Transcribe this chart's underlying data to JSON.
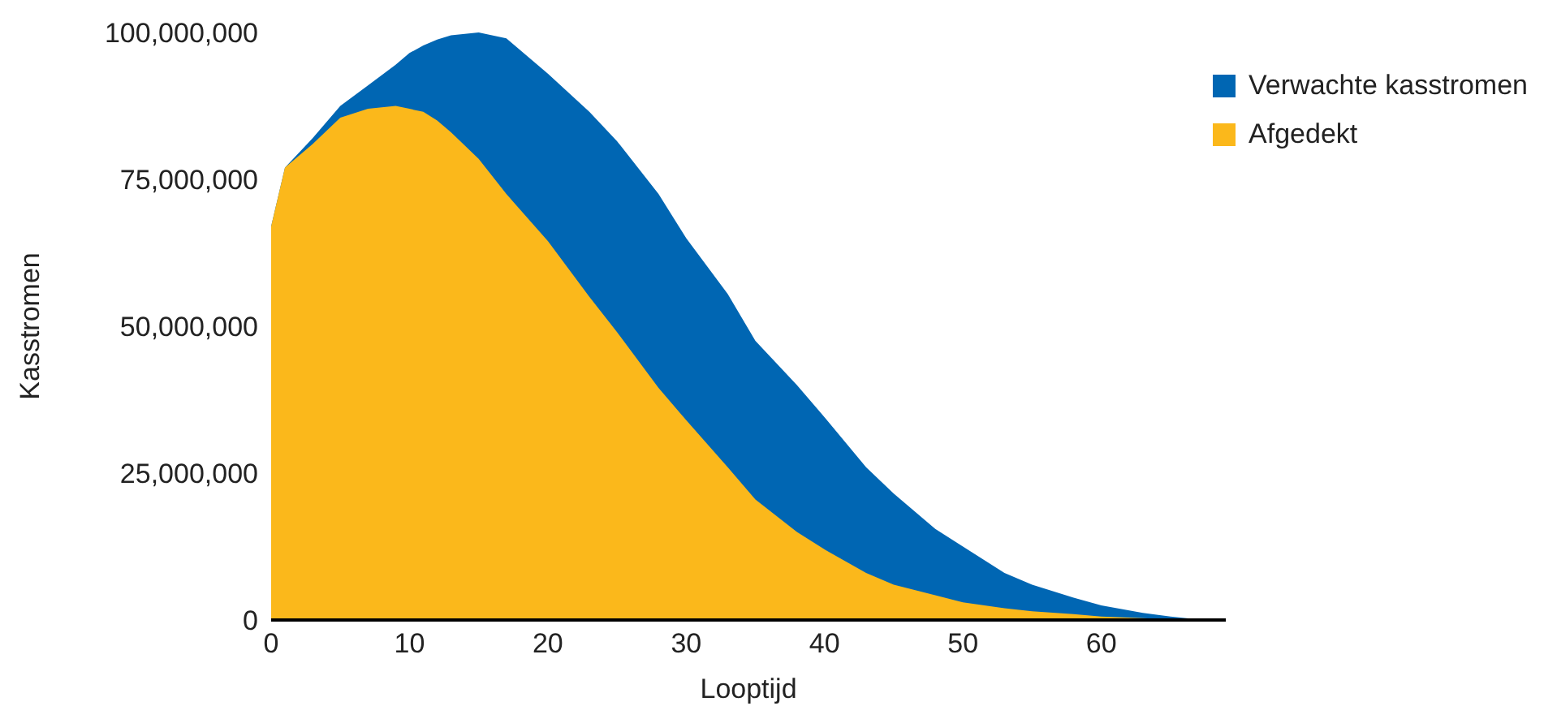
{
  "chart_data": {
    "type": "area",
    "xlabel": "Looptijd",
    "ylabel": "Kasstromen",
    "x": [
      0,
      1,
      3,
      5,
      7,
      9,
      10,
      11,
      12,
      13,
      15,
      17,
      20,
      23,
      25,
      28,
      30,
      33,
      35,
      38,
      40,
      43,
      45,
      48,
      50,
      53,
      55,
      58,
      60,
      63,
      65,
      67,
      69
    ],
    "series": [
      {
        "name": "Verwachte kasstromen",
        "color": "#0066b3",
        "values": [
          67000000,
          77000000,
          82000000,
          87500000,
          91000000,
          94500000,
          96500000,
          97800000,
          98800000,
          99500000,
          100000000,
          99000000,
          93000000,
          86500000,
          81500000,
          72500000,
          65000000,
          55500000,
          47500000,
          40000000,
          34500000,
          26000000,
          21500000,
          15500000,
          12500000,
          8000000,
          6000000,
          3800000,
          2500000,
          1200000,
          600000,
          100000,
          0
        ]
      },
      {
        "name": "Afgedekt",
        "color": "#fbb81b",
        "values": [
          67000000,
          77000000,
          81000000,
          85500000,
          87000000,
          87500000,
          87000000,
          86500000,
          85000000,
          83000000,
          78500000,
          72500000,
          64500000,
          55000000,
          49000000,
          39500000,
          34000000,
          26000000,
          20500000,
          15000000,
          12000000,
          8000000,
          6000000,
          4200000,
          3000000,
          2000000,
          1500000,
          1000000,
          600000,
          300000,
          100000,
          0,
          0
        ]
      }
    ],
    "xlim": [
      0,
      69
    ],
    "xticks": [
      0,
      10,
      20,
      30,
      40,
      50,
      60
    ],
    "ylim": [
      0,
      100000000
    ],
    "yticks": [
      0,
      {
        "value": 25000000,
        "label": "25,000,000"
      },
      {
        "value": 50000000,
        "label": "50,000,000"
      },
      {
        "value": 75000000,
        "label": "75,000,000"
      },
      {
        "value": 100000000,
        "label": "100,000,000"
      }
    ],
    "legend": "top right"
  }
}
